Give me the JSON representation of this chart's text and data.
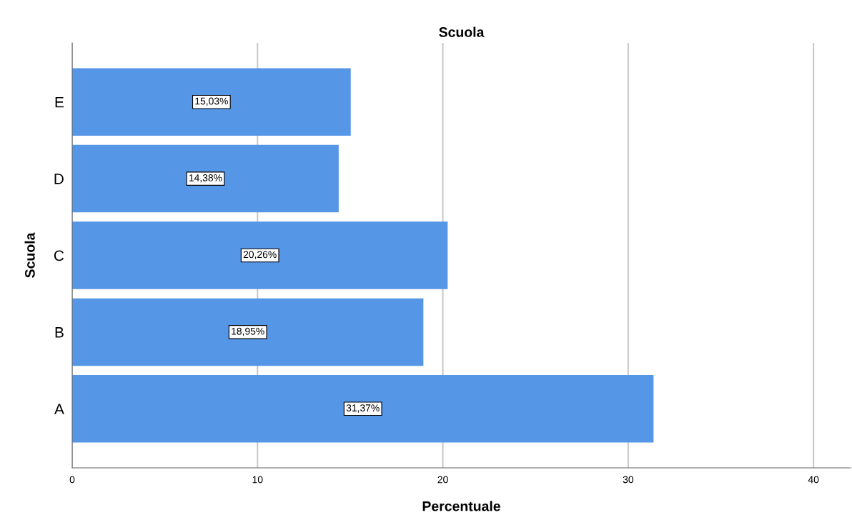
{
  "chart_data": {
    "type": "bar",
    "orientation": "horizontal",
    "title": "Scuola",
    "xlabel": "Percentuale",
    "ylabel": "Scuola",
    "categories": [
      "E",
      "D",
      "C",
      "B",
      "A"
    ],
    "values": [
      15.03,
      14.38,
      20.26,
      18.95,
      31.37
    ],
    "value_labels": [
      "15,03%",
      "14,38%",
      "20,26%",
      "18,95%",
      "31,37%"
    ],
    "color": "#5596e6",
    "xlim": [
      0,
      42
    ],
    "xticks": [
      0,
      10,
      20,
      30,
      40
    ],
    "grid": "x",
    "legend": false
  }
}
